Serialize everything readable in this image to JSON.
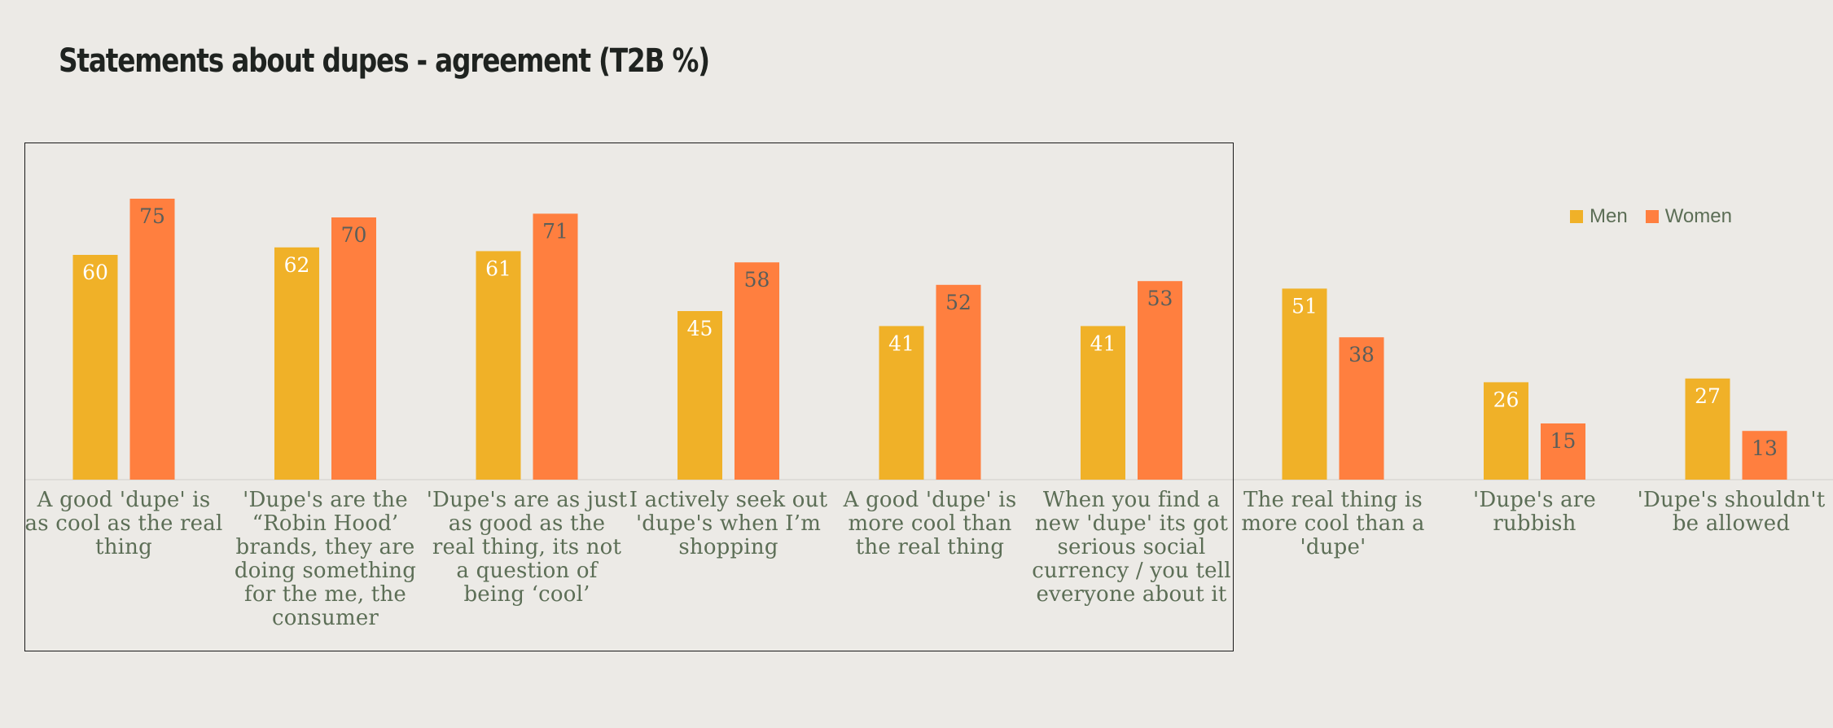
{
  "title": "Statements about dupes - agreement (T2B %)",
  "colors": {
    "men": "#F0B128",
    "women": "#FF7F3F",
    "label_dark": "#5A5E5A",
    "label_light": "#FFFFFF",
    "text": "#5C6E56"
  },
  "chart_data": {
    "type": "bar",
    "categories": [
      "A good 'dupe' is as cool as the real thing",
      "'Dupe's are the “Robin Hood’ brands, they are doing something for the me, the consumer",
      "'Dupe's are as just as good as the real thing, its not a question of being ‘cool’",
      "I actively seek out 'dupe's when I’m shopping",
      "A good 'dupe' is more cool than the real thing",
      "When you find a new 'dupe' its got serious social currency / you tell everyone about it",
      "The real thing is more cool than a 'dupe'",
      "'Dupe's are rubbish",
      "'Dupe's shouldn't be allowed"
    ],
    "series": [
      {
        "name": "Men",
        "values": [
          60,
          62,
          61,
          45,
          41,
          41,
          51,
          26,
          27
        ]
      },
      {
        "name": "Women",
        "values": [
          75,
          70,
          71,
          58,
          52,
          53,
          38,
          15,
          13
        ]
      }
    ],
    "ylim": [
      0,
      80
    ],
    "grid": false,
    "data_labels": true,
    "legend": "top-right"
  }
}
